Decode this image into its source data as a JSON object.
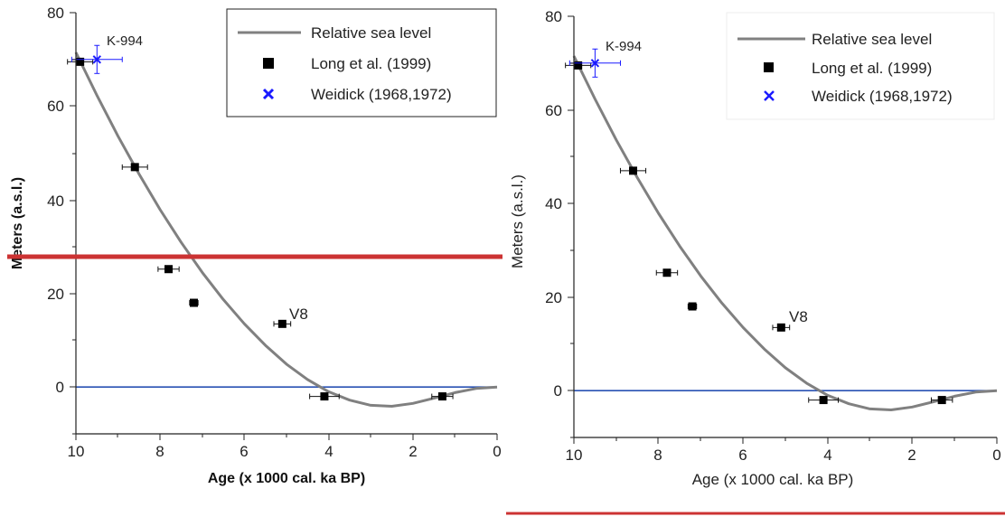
{
  "chart_data": [
    {
      "type": "scatter",
      "xlabel": "Age (x 1000 cal. ka BP)",
      "ylabel": "Meters (a.s.l.)",
      "xlim": [
        10,
        0
      ],
      "ylim": [
        -10,
        80
      ],
      "xticks": [
        "10",
        "8",
        "6",
        "4",
        "2",
        "0"
      ],
      "yticks": [
        "80",
        "60",
        "40",
        "20",
        "0"
      ],
      "grid": false,
      "legend_position": "top-right",
      "legend": [
        "Relative sea level",
        "Long et al. (1999)",
        "Weidick (1968,1972)"
      ],
      "annotations": [
        "K-994",
        "V8"
      ],
      "series": [
        {
          "name": "Relative sea level",
          "kind": "line",
          "x": [
            10,
            9.5,
            9,
            8.5,
            8,
            7.5,
            7,
            6.5,
            6,
            5.5,
            5,
            4.5,
            4,
            3.5,
            3,
            2.5,
            2,
            1.5,
            1,
            0.5,
            0
          ],
          "y": [
            71.5,
            62.3,
            53.6,
            45.5,
            37.9,
            30.9,
            24.5,
            18.7,
            13.5,
            8.9,
            4.9,
            1.6,
            -1.0,
            -2.8,
            -3.9,
            -4.1,
            -3.5,
            -2.4,
            -1.2,
            -0.3,
            0
          ]
        },
        {
          "name": "Long et al. (1999)",
          "kind": "points",
          "points": [
            {
              "x": 9.9,
              "y": 69.5,
              "xerr": 0.3
            },
            {
              "x": 8.6,
              "y": 47.0,
              "xerr": 0.3
            },
            {
              "x": 7.8,
              "y": 25.2,
              "xerr": 0.25
            },
            {
              "x": 7.2,
              "y": 18.0,
              "xerr": 0.1
            },
            {
              "x": 5.1,
              "y": 13.5,
              "xerr": 0.2
            },
            {
              "x": 4.1,
              "y": -2.0,
              "xerr": 0.35
            },
            {
              "x": 1.3,
              "y": -2.0,
              "xerr": 0.25
            }
          ]
        },
        {
          "name": "Weidick (1968,1972)",
          "kind": "points",
          "points": [
            {
              "x": 9.5,
              "y": 70.0,
              "xerr": 0.6,
              "yerr": 3.0
            }
          ]
        }
      ],
      "baseline_y": 0,
      "colors": {
        "curve": "#808080",
        "long": "#000000",
        "weidick": "#1a1aff",
        "baseline": "#2952b3",
        "cut_line": "#cc3333"
      }
    },
    {
      "type": "scatter",
      "xlabel": "Age (x 1000 cal. ka BP)",
      "ylabel": "Meters (a.s.l.)",
      "xlim": [
        10,
        0
      ],
      "ylim": [
        -10,
        80
      ],
      "xticks": [
        "10",
        "8",
        "6",
        "4",
        "2",
        "0"
      ],
      "yticks": [
        "80",
        "60",
        "40",
        "20",
        "0"
      ],
      "grid": false,
      "legend_position": "top-right",
      "legend": [
        "Relative sea level",
        "Long et al. (1999)",
        "Weidick (1968,1972)"
      ],
      "annotations": [
        "K-994",
        "V8"
      ]
    }
  ]
}
